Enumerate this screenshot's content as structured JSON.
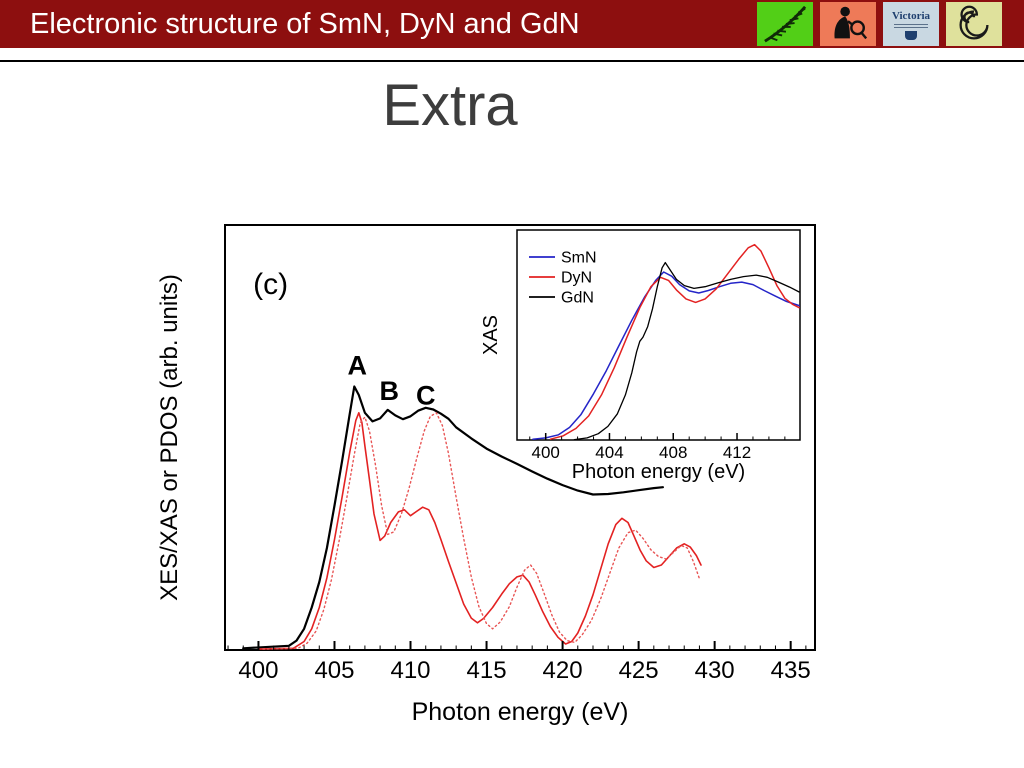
{
  "header": {
    "title": "Electronic structure of SmN, DyN and GdN",
    "bar_color": "#8d0f0f",
    "logos": [
      {
        "name": "nz-fern",
        "bg": "#52cf17"
      },
      {
        "name": "researcher",
        "bg": "#ee7a58"
      },
      {
        "name": "victoria",
        "bg": "#c9d8e2",
        "text": "Victoria"
      },
      {
        "name": "koru",
        "bg": "#dfe19c"
      }
    ]
  },
  "slide": {
    "title": "Extra"
  },
  "chart_data": {
    "type": "line",
    "title": "",
    "xlabel": "Photon energy (eV)",
    "ylabel": "XES/XAS or PDOS (arb. units)",
    "xlim": [
      397.8,
      436.6
    ],
    "ylim": [
      0,
      1
    ],
    "xticks": [
      400,
      405,
      410,
      415,
      420,
      425,
      430,
      435
    ],
    "grid": false,
    "annotations": [
      {
        "text": "(c)",
        "x": 400.8,
        "y": 0.838,
        "size": 30,
        "weight": 400
      },
      {
        "text": "A",
        "x": 406.5,
        "y": 0.648,
        "size": 27,
        "weight": 600
      },
      {
        "text": "B",
        "x": 408.6,
        "y": 0.588,
        "size": 27,
        "weight": 600
      },
      {
        "text": "C",
        "x": 411.0,
        "y": 0.578,
        "size": 27,
        "weight": 600
      }
    ],
    "series": [
      {
        "id": "xas-black",
        "color": "#000000",
        "width": 2.2,
        "dash": "",
        "points": [
          [
            399,
            0.004
          ],
          [
            402,
            0.01
          ],
          [
            402.5,
            0.022
          ],
          [
            403,
            0.05
          ],
          [
            403.5,
            0.1
          ],
          [
            404,
            0.16
          ],
          [
            404.5,
            0.24
          ],
          [
            405,
            0.34
          ],
          [
            405.5,
            0.445
          ],
          [
            406,
            0.555
          ],
          [
            406.3,
            0.62
          ],
          [
            406.6,
            0.6
          ],
          [
            407,
            0.558
          ],
          [
            407.5,
            0.538
          ],
          [
            408,
            0.545
          ],
          [
            408.5,
            0.565
          ],
          [
            409,
            0.552
          ],
          [
            409.5,
            0.543
          ],
          [
            410,
            0.55
          ],
          [
            410.5,
            0.563
          ],
          [
            411,
            0.57
          ],
          [
            411.5,
            0.566
          ],
          [
            412,
            0.556
          ],
          [
            412.5,
            0.544
          ],
          [
            413,
            0.524
          ],
          [
            414,
            0.498
          ],
          [
            415,
            0.474
          ],
          [
            416,
            0.455
          ],
          [
            417,
            0.438
          ],
          [
            418,
            0.42
          ],
          [
            419,
            0.403
          ],
          [
            420,
            0.388
          ],
          [
            421,
            0.375
          ],
          [
            422,
            0.366
          ],
          [
            423,
            0.367
          ],
          [
            424,
            0.371
          ],
          [
            425,
            0.376
          ],
          [
            426,
            0.381
          ],
          [
            426.6,
            0.383
          ]
        ]
      },
      {
        "id": "xes-red-solid",
        "color": "#e32222",
        "width": 1.6,
        "dash": "",
        "points": [
          [
            400,
            0.002
          ],
          [
            402.3,
            0.004
          ],
          [
            403,
            0.02
          ],
          [
            403.5,
            0.05
          ],
          [
            404,
            0.1
          ],
          [
            404.5,
            0.17
          ],
          [
            405,
            0.26
          ],
          [
            405.5,
            0.36
          ],
          [
            406,
            0.465
          ],
          [
            406.4,
            0.54
          ],
          [
            406.6,
            0.558
          ],
          [
            406.8,
            0.535
          ],
          [
            407,
            0.48
          ],
          [
            407.3,
            0.4
          ],
          [
            407.6,
            0.32
          ],
          [
            408,
            0.258
          ],
          [
            408.3,
            0.268
          ],
          [
            408.7,
            0.3
          ],
          [
            409.2,
            0.325
          ],
          [
            409.6,
            0.33
          ],
          [
            410,
            0.316
          ],
          [
            410.4,
            0.326
          ],
          [
            410.8,
            0.336
          ],
          [
            411.2,
            0.33
          ],
          [
            411.6,
            0.3
          ],
          [
            412,
            0.26
          ],
          [
            412.5,
            0.208
          ],
          [
            413,
            0.158
          ],
          [
            413.5,
            0.108
          ],
          [
            414,
            0.075
          ],
          [
            414.4,
            0.064
          ],
          [
            414.8,
            0.074
          ],
          [
            415.4,
            0.1
          ],
          [
            416,
            0.132
          ],
          [
            416.5,
            0.156
          ],
          [
            417,
            0.172
          ],
          [
            417.4,
            0.176
          ],
          [
            417.8,
            0.16
          ],
          [
            418.2,
            0.13
          ],
          [
            418.7,
            0.09
          ],
          [
            419.2,
            0.055
          ],
          [
            419.7,
            0.03
          ],
          [
            420.2,
            0.014
          ],
          [
            420.6,
            0.02
          ],
          [
            421,
            0.04
          ],
          [
            421.5,
            0.08
          ],
          [
            422,
            0.13
          ],
          [
            422.5,
            0.19
          ],
          [
            423,
            0.25
          ],
          [
            423.5,
            0.295
          ],
          [
            423.9,
            0.31
          ],
          [
            424.3,
            0.3
          ],
          [
            424.7,
            0.268
          ],
          [
            425.1,
            0.235
          ],
          [
            425.5,
            0.21
          ],
          [
            426,
            0.194
          ],
          [
            426.5,
            0.2
          ],
          [
            427,
            0.22
          ],
          [
            427.5,
            0.24
          ],
          [
            428,
            0.25
          ],
          [
            428.4,
            0.242
          ],
          [
            428.8,
            0.222
          ],
          [
            429.1,
            0.2
          ]
        ]
      },
      {
        "id": "pdos-red-dotted",
        "color": "#e85555",
        "width": 1.4,
        "dash": "1.5 3",
        "points": [
          [
            400.3,
            0.002
          ],
          [
            402.6,
            0.004
          ],
          [
            403.2,
            0.016
          ],
          [
            403.8,
            0.045
          ],
          [
            404.3,
            0.095
          ],
          [
            404.8,
            0.165
          ],
          [
            405.3,
            0.255
          ],
          [
            405.8,
            0.355
          ],
          [
            406.3,
            0.46
          ],
          [
            406.7,
            0.535
          ],
          [
            407,
            0.548
          ],
          [
            407.3,
            0.515
          ],
          [
            407.7,
            0.435
          ],
          [
            408.1,
            0.34
          ],
          [
            408.5,
            0.272
          ],
          [
            408.9,
            0.278
          ],
          [
            409.4,
            0.32
          ],
          [
            409.9,
            0.38
          ],
          [
            410.4,
            0.45
          ],
          [
            410.9,
            0.515
          ],
          [
            411.3,
            0.55
          ],
          [
            411.7,
            0.558
          ],
          [
            412.1,
            0.528
          ],
          [
            412.5,
            0.462
          ],
          [
            413,
            0.36
          ],
          [
            413.5,
            0.262
          ],
          [
            414,
            0.172
          ],
          [
            414.5,
            0.102
          ],
          [
            415,
            0.062
          ],
          [
            415.4,
            0.05
          ],
          [
            415.9,
            0.066
          ],
          [
            416.5,
            0.102
          ],
          [
            417,
            0.148
          ],
          [
            417.5,
            0.188
          ],
          [
            417.9,
            0.2
          ],
          [
            418.3,
            0.18
          ],
          [
            418.8,
            0.132
          ],
          [
            419.3,
            0.082
          ],
          [
            419.8,
            0.042
          ],
          [
            420.3,
            0.022
          ],
          [
            420.8,
            0.018
          ],
          [
            421.3,
            0.036
          ],
          [
            421.9,
            0.07
          ],
          [
            422.5,
            0.12
          ],
          [
            423.1,
            0.18
          ],
          [
            423.7,
            0.24
          ],
          [
            424.3,
            0.276
          ],
          [
            424.8,
            0.282
          ],
          [
            425.3,
            0.262
          ],
          [
            425.8,
            0.236
          ],
          [
            426.3,
            0.22
          ],
          [
            426.8,
            0.214
          ],
          [
            427.3,
            0.23
          ],
          [
            427.8,
            0.246
          ],
          [
            428.2,
            0.24
          ],
          [
            428.6,
            0.208
          ],
          [
            429,
            0.168
          ]
        ]
      }
    ],
    "inset": {
      "ylabel": "XAS",
      "xlabel": "Photon energy (eV)",
      "xlim": [
        398.2,
        415.95
      ],
      "ylim": [
        0,
        1
      ],
      "xticks": [
        400,
        404,
        408,
        412
      ],
      "legend_position": "top-left",
      "legend": [
        {
          "label": "SmN",
          "color": "#2525c8"
        },
        {
          "label": "DyN",
          "color": "#e32222"
        },
        {
          "label": "GdN",
          "color": "#000000"
        }
      ],
      "series": [
        {
          "id": "smn-blue",
          "color": "#2525c8",
          "width": 1.5,
          "dash": "",
          "points": [
            [
              399.2,
              0.004
            ],
            [
              400,
              0.01
            ],
            [
              400.8,
              0.025
            ],
            [
              401.5,
              0.06
            ],
            [
              402.2,
              0.12
            ],
            [
              403,
              0.22
            ],
            [
              403.8,
              0.33
            ],
            [
              404.6,
              0.45
            ],
            [
              405.4,
              0.57
            ],
            [
              406.2,
              0.68
            ],
            [
              406.9,
              0.76
            ],
            [
              407.4,
              0.8
            ],
            [
              407.9,
              0.78
            ],
            [
              408.4,
              0.74
            ],
            [
              409,
              0.71
            ],
            [
              409.6,
              0.7
            ],
            [
              410.2,
              0.712
            ],
            [
              410.9,
              0.73
            ],
            [
              411.6,
              0.746
            ],
            [
              412.3,
              0.752
            ],
            [
              413,
              0.74
            ],
            [
              413.7,
              0.712
            ],
            [
              414.4,
              0.685
            ],
            [
              415.1,
              0.66
            ],
            [
              415.9,
              0.64
            ]
          ]
        },
        {
          "id": "dyn-red",
          "color": "#e32222",
          "width": 1.5,
          "dash": "",
          "points": [
            [
              400.3,
              0.004
            ],
            [
              401.1,
              0.02
            ],
            [
              401.9,
              0.055
            ],
            [
              402.7,
              0.115
            ],
            [
              403.5,
              0.215
            ],
            [
              404.3,
              0.345
            ],
            [
              405.1,
              0.49
            ],
            [
              405.9,
              0.63
            ],
            [
              406.6,
              0.73
            ],
            [
              407.2,
              0.775
            ],
            [
              407.7,
              0.76
            ],
            [
              408.2,
              0.715
            ],
            [
              408.8,
              0.672
            ],
            [
              409.4,
              0.655
            ],
            [
              410,
              0.672
            ],
            [
              410.7,
              0.72
            ],
            [
              411.4,
              0.79
            ],
            [
              412.1,
              0.86
            ],
            [
              412.7,
              0.915
            ],
            [
              413.1,
              0.93
            ],
            [
              413.5,
              0.9
            ],
            [
              414,
              0.82
            ],
            [
              414.5,
              0.735
            ],
            [
              415,
              0.675
            ],
            [
              415.5,
              0.645
            ],
            [
              415.9,
              0.63
            ]
          ]
        },
        {
          "id": "gdn-black",
          "color": "#000000",
          "width": 1.3,
          "dash": "",
          "points": [
            [
              401.8,
              0.002
            ],
            [
              402.6,
              0.01
            ],
            [
              403.3,
              0.03
            ],
            [
              403.9,
              0.065
            ],
            [
              404.5,
              0.125
            ],
            [
              405,
              0.215
            ],
            [
              405.4,
              0.32
            ],
            [
              405.7,
              0.42
            ],
            [
              405.9,
              0.47
            ],
            [
              406.1,
              0.49
            ],
            [
              406.4,
              0.54
            ],
            [
              406.7,
              0.625
            ],
            [
              407,
              0.73
            ],
            [
              407.3,
              0.82
            ],
            [
              407.5,
              0.845
            ],
            [
              407.8,
              0.81
            ],
            [
              408.2,
              0.765
            ],
            [
              408.7,
              0.735
            ],
            [
              409.3,
              0.722
            ],
            [
              410,
              0.73
            ],
            [
              410.8,
              0.748
            ],
            [
              411.6,
              0.765
            ],
            [
              412.4,
              0.778
            ],
            [
              413.2,
              0.785
            ],
            [
              413.9,
              0.775
            ],
            [
              414.6,
              0.752
            ],
            [
              415.3,
              0.728
            ],
            [
              415.9,
              0.705
            ]
          ]
        }
      ]
    }
  }
}
